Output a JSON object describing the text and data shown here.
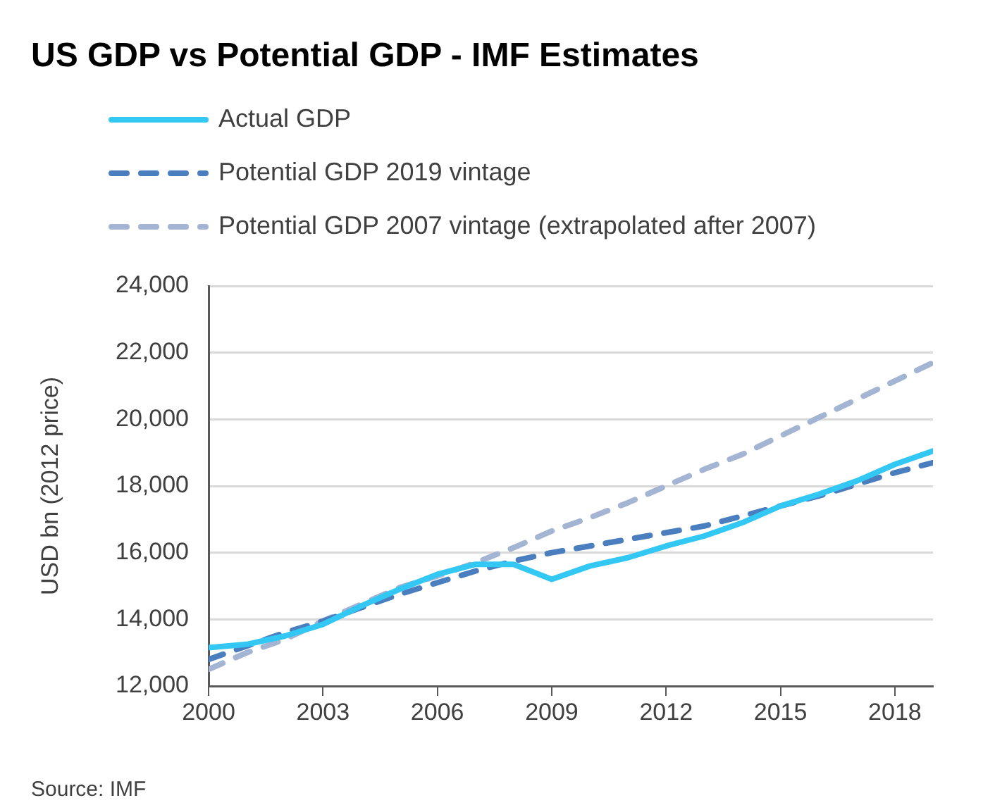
{
  "chart_data": {
    "type": "line",
    "title": "US GDP vs Potential GDP - IMF Estimates",
    "ylabel": "USD bn (2012 price)",
    "x": [
      2000,
      2001,
      2002,
      2003,
      2004,
      2005,
      2006,
      2007,
      2008,
      2009,
      2010,
      2011,
      2012,
      2013,
      2014,
      2015,
      2016,
      2017,
      2018,
      2019
    ],
    "series": [
      {
        "name": "Actual GDP",
        "color": "#33c7f4",
        "line_style": "solid",
        "values": [
          13150,
          13250,
          13500,
          13850,
          14400,
          14900,
          15350,
          15650,
          15650,
          15200,
          15600,
          15850,
          16200,
          16500,
          16900,
          17400,
          17750,
          18150,
          18650,
          19050
        ]
      },
      {
        "name": "Potential GDP 2019 vintage",
        "color": "#4a7ebf",
        "line_style": "dashed",
        "values": [
          12800,
          13200,
          13600,
          13950,
          14350,
          14750,
          15100,
          15450,
          15750,
          16000,
          16200,
          16400,
          16600,
          16800,
          17100,
          17400,
          17700,
          18050,
          18400,
          18700
        ]
      },
      {
        "name": "Potential GDP 2007 vintage (extrapolated after 2007)",
        "color": "#a3b5d3",
        "line_style": "dashed",
        "values": [
          12500,
          13000,
          13400,
          13950,
          14450,
          14950,
          15300,
          15700,
          16150,
          16650,
          17050,
          17500,
          18000,
          18500,
          18950,
          19500,
          20050,
          20600,
          21150,
          21700
        ]
      }
    ],
    "xlim": [
      2000,
      2019
    ],
    "xticks": [
      2000,
      2003,
      2006,
      2009,
      2012,
      2015,
      2018
    ],
    "ylim": [
      12000,
      24000
    ],
    "yticks": [
      {
        "value": 12000,
        "label": "12,000"
      },
      {
        "value": 14000,
        "label": "14,000"
      },
      {
        "value": 16000,
        "label": "16,000"
      },
      {
        "value": 18000,
        "label": "18,000"
      },
      {
        "value": 20000,
        "label": "20,000"
      },
      {
        "value": 22000,
        "label": "22,000"
      },
      {
        "value": 24000,
        "label": "24,000"
      }
    ],
    "grid": "y",
    "legend": "top left",
    "marker": "none",
    "annotations": [
      "Source: IMF"
    ]
  }
}
